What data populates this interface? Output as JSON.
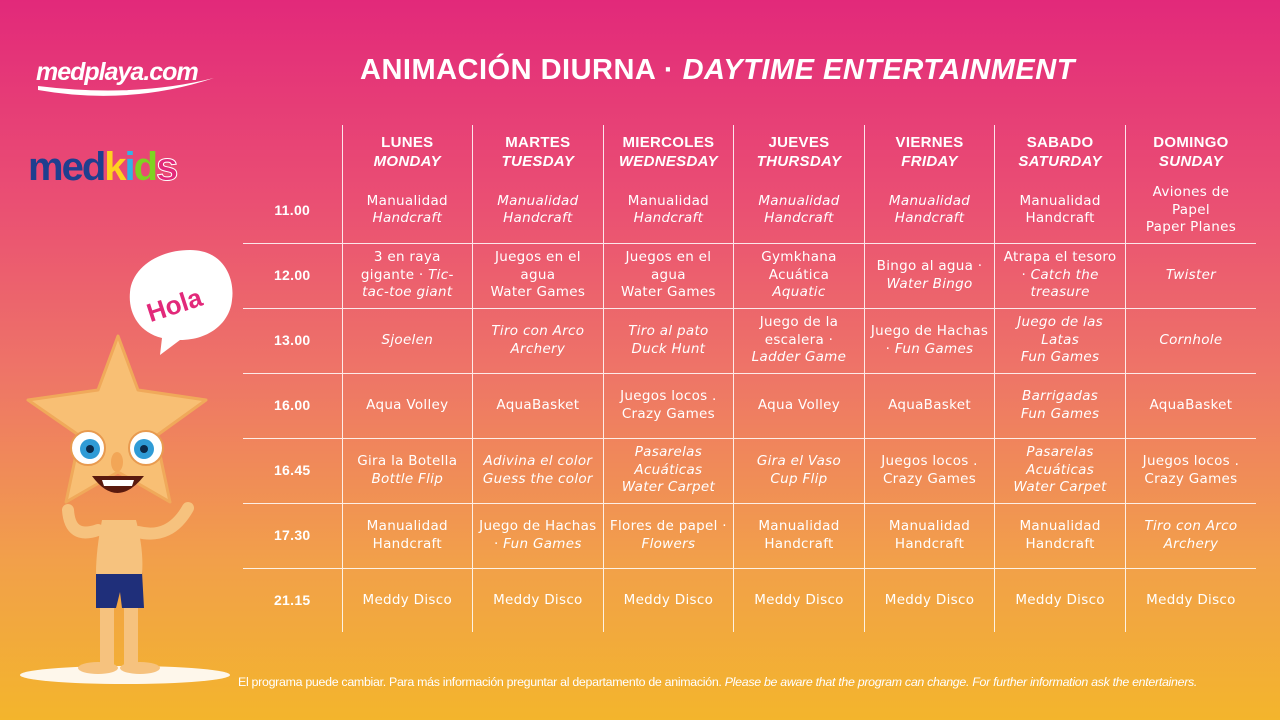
{
  "header": {
    "title_es": "ANIMACIÓN DIURNA · ",
    "title_en": "DAYTIME ENTERTAINMENT"
  },
  "logos": {
    "medplaya": "medplaya.com",
    "medkids": "medkids"
  },
  "mascot": {
    "speech": "Hola"
  },
  "colors": {
    "gradient_top": "#e2297a",
    "gradient_bottom": "#f3b52c",
    "text": "#ffffff"
  },
  "schedule": {
    "days": [
      {
        "es": "LUNES",
        "en": "MONDAY"
      },
      {
        "es": "MARTES",
        "en": "TUESDAY"
      },
      {
        "es": "MIERCOLES",
        "en": "WEDNESDAY"
      },
      {
        "es": "JUEVES",
        "en": "THURSDAY"
      },
      {
        "es": "VIERNES",
        "en": "FRIDAY"
      },
      {
        "es": "SABADO",
        "en": "SATURDAY"
      },
      {
        "es": "DOMINGO",
        "en": "SUNDAY"
      }
    ],
    "rows": [
      {
        "time": "11.00",
        "cells": [
          {
            "es": "Manualidad",
            "en": "Handcraft",
            "style": "split"
          },
          {
            "es": "Manualidad",
            "en": "Handcraft",
            "style": "italic"
          },
          {
            "es": "Manualidad",
            "en": "Handcraft",
            "style": "split"
          },
          {
            "es": "Manualidad",
            "en": "Handcraft",
            "style": "italic"
          },
          {
            "es": "Manualidad",
            "en": "Handcraft",
            "style": "italic"
          },
          {
            "es": "Manualidad",
            "en": "Handcraft",
            "style": "plain"
          },
          {
            "es": "Aviones de Papel",
            "en": "Paper Planes",
            "style": "plain"
          }
        ]
      },
      {
        "time": "12.00",
        "cells": [
          {
            "es": "3 en raya gigante · ",
            "en": "Tic-tac-toe giant",
            "style": "inline"
          },
          {
            "es": "Juegos en el agua",
            "en": "Water Games",
            "style": "plain"
          },
          {
            "es": "Juegos en el agua",
            "en": "Water Games",
            "style": "plain"
          },
          {
            "es": "Gymkhana Acuática",
            "en": "Aquatic",
            "style": "split"
          },
          {
            "es": "Bingo al agua · ",
            "en": "Water Bingo",
            "style": "inline"
          },
          {
            "es": "Atrapa el tesoro · ",
            "en": "Catch the treasure",
            "style": "inline"
          },
          {
            "es": "",
            "en": "Twister",
            "style": "italic"
          }
        ]
      },
      {
        "time": "13.00",
        "cells": [
          {
            "es": "",
            "en": "Sjoelen",
            "style": "italic"
          },
          {
            "es": "Tiro con Arco",
            "en": "Archery",
            "style": "italic"
          },
          {
            "es": "Tiro al pato",
            "en": "Duck Hunt",
            "style": "italic"
          },
          {
            "es": "Juego de la escalera · ",
            "en": "Ladder Game",
            "style": "inline"
          },
          {
            "es": "Juego de Hachas · ",
            "en": "Fun Games",
            "style": "inline"
          },
          {
            "es": "Juego de las Latas",
            "en": "Fun Games",
            "style": "italic"
          },
          {
            "es": "",
            "en": "Cornhole",
            "style": "italic"
          }
        ]
      },
      {
        "time": "16.00",
        "cells": [
          {
            "es": "Aqua Volley",
            "en": "",
            "style": "plain"
          },
          {
            "es": "AquaBasket",
            "en": "",
            "style": "plain"
          },
          {
            "es": "Juegos locos .",
            "en": "Crazy Games",
            "style": "plain"
          },
          {
            "es": "Aqua Volley",
            "en": "",
            "style": "plain"
          },
          {
            "es": "AquaBasket",
            "en": "",
            "style": "plain"
          },
          {
            "es": "Barrigadas",
            "en": "Fun Games",
            "style": "italic"
          },
          {
            "es": "AquaBasket",
            "en": "",
            "style": "plain"
          }
        ]
      },
      {
        "time": "16.45",
        "cells": [
          {
            "es": "Gira la Botella",
            "en": "Bottle Flip",
            "style": "split"
          },
          {
            "es": "Adivina el color",
            "en": "Guess the color",
            "style": "italic"
          },
          {
            "es": "Pasarelas Acuáticas",
            "en": "Water Carpet",
            "style": "italic"
          },
          {
            "es": "Gira el Vaso",
            "en": "Cup Flip",
            "style": "italic"
          },
          {
            "es": "Juegos locos .",
            "en": "Crazy Games",
            "style": "plain"
          },
          {
            "es": "Pasarelas Acuáticas",
            "en": "Water Carpet",
            "style": "italic"
          },
          {
            "es": "Juegos locos .",
            "en": "Crazy Games",
            "style": "plain"
          }
        ]
      },
      {
        "time": "17.30",
        "cells": [
          {
            "es": "Manualidad",
            "en": "Handcraft",
            "style": "plain"
          },
          {
            "es": "Juego de Hachas · ",
            "en": "Fun Games",
            "style": "inline"
          },
          {
            "es": "Flores de papel · ",
            "en": "Flowers",
            "style": "inline"
          },
          {
            "es": "Manualidad",
            "en": "Handcraft",
            "style": "plain"
          },
          {
            "es": "Manualidad",
            "en": "Handcraft",
            "style": "plain"
          },
          {
            "es": "Manualidad",
            "en": "Handcraft",
            "style": "plain"
          },
          {
            "es": "Tiro con Arco",
            "en": "Archery",
            "style": "italic"
          }
        ]
      },
      {
        "time": "21.15",
        "cells": [
          {
            "es": "Meddy Disco",
            "en": "",
            "style": "plain"
          },
          {
            "es": "Meddy Disco",
            "en": "",
            "style": "plain"
          },
          {
            "es": "Meddy Disco",
            "en": "",
            "style": "plain"
          },
          {
            "es": "Meddy Disco",
            "en": "",
            "style": "plain"
          },
          {
            "es": "Meddy Disco",
            "en": "",
            "style": "plain"
          },
          {
            "es": "Meddy Disco",
            "en": "",
            "style": "plain"
          },
          {
            "es": "Meddy Disco",
            "en": "",
            "style": "plain"
          }
        ]
      }
    ]
  },
  "footer": {
    "es": "El programa puede cambiar. Para más información preguntar  al departamento de animación. ",
    "en": "Please be aware that the program can change. For further information ask the entertainers."
  }
}
